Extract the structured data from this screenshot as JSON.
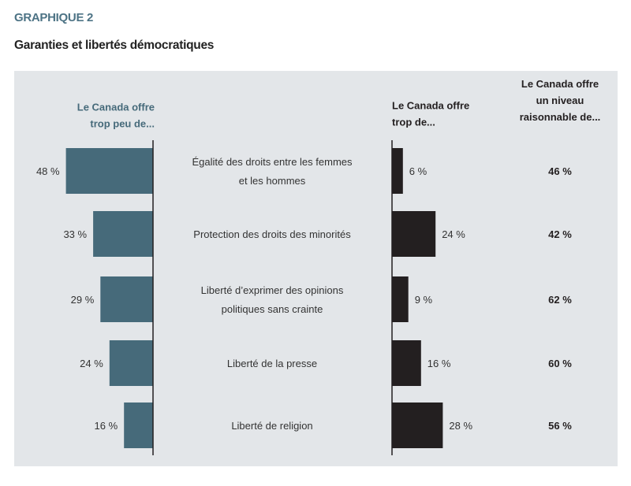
{
  "kicker": "GRAPHIQUE 2",
  "title": "Garanties et libertés démocratiques",
  "chart_data": {
    "type": "bar",
    "orientation": "horizontal",
    "categories": [
      [
        "Égalité des droits entre les femmes",
        "et les hommes"
      ],
      [
        "Protection des droits des minorités"
      ],
      [
        "Liberté d’exprimer des opinions",
        "politiques sans crainte"
      ],
      [
        "Liberté de la presse"
      ],
      [
        "Liberté de religion"
      ]
    ],
    "series": [
      {
        "name": [
          "Le Canada offre",
          "trop peu de..."
        ],
        "values": [
          48,
          33,
          29,
          24,
          16
        ],
        "color": "#466a7a"
      },
      {
        "name": [
          "Le Canada offre",
          "trop de..."
        ],
        "values": [
          6,
          24,
          9,
          16,
          28
        ],
        "color": "#231f20"
      },
      {
        "name": [
          "Le Canada offre",
          "un niveau",
          "raisonnable de..."
        ],
        "values": [
          46,
          42,
          62,
          60,
          56
        ],
        "display": "text"
      }
    ],
    "value_suffix": " %",
    "background": "#e3e6e9"
  }
}
